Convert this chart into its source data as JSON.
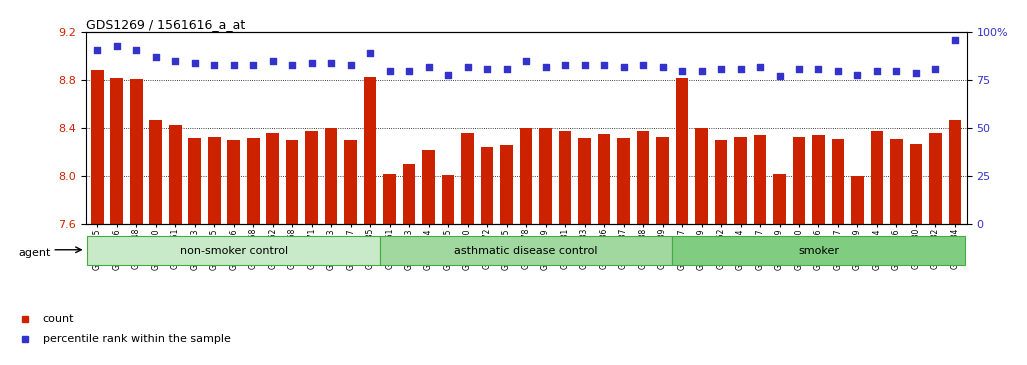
{
  "title": "GDS1269 / 1561616_a_at",
  "categories": [
    "GSM38345",
    "GSM38346",
    "GSM38348",
    "GSM38350",
    "GSM38351",
    "GSM38353",
    "GSM38355",
    "GSM38356",
    "GSM38358",
    "GSM38362",
    "GSM38368",
    "GSM38371",
    "GSM38373",
    "GSM38377",
    "GSM38385",
    "GSM38361",
    "GSM38363",
    "GSM38364",
    "GSM38365",
    "GSM38370",
    "GSM38372",
    "GSM38375",
    "GSM38378",
    "GSM38379",
    "GSM38381",
    "GSM38383",
    "GSM38386",
    "GSM38387",
    "GSM38388",
    "GSM38389",
    "GSM38347",
    "GSM38349",
    "GSM38352",
    "GSM38354",
    "GSM38357",
    "GSM38359",
    "GSM38360",
    "GSM38366",
    "GSM38367",
    "GSM38369",
    "GSM38374",
    "GSM38376",
    "GSM38380",
    "GSM38382",
    "GSM38384"
  ],
  "bar_values": [
    8.89,
    8.82,
    8.81,
    8.47,
    8.43,
    8.32,
    8.33,
    8.3,
    8.32,
    8.36,
    8.3,
    8.38,
    8.4,
    8.3,
    8.83,
    8.02,
    8.1,
    8.22,
    8.01,
    8.36,
    8.24,
    8.26,
    8.4,
    8.4,
    8.38,
    8.32,
    8.35,
    8.32,
    8.38,
    8.33,
    8.82,
    8.4,
    8.3,
    8.33,
    8.34,
    8.02,
    8.33,
    8.34,
    8.31,
    8.0,
    8.38,
    8.31,
    8.27,
    8.36,
    8.47
  ],
  "percentile_values": [
    91,
    93,
    91,
    87,
    85,
    84,
    83,
    83,
    83,
    85,
    83,
    84,
    84,
    83,
    89,
    80,
    80,
    82,
    78,
    82,
    81,
    81,
    85,
    82,
    83,
    83,
    83,
    82,
    83,
    82,
    80,
    80,
    81,
    81,
    82,
    77,
    81,
    81,
    80,
    78,
    80,
    80,
    79,
    81,
    96
  ],
  "groups": [
    {
      "label": "non-smoker control",
      "start": 0,
      "end": 15
    },
    {
      "label": "asthmatic disease control",
      "start": 15,
      "end": 30
    },
    {
      "label": "smoker",
      "start": 30,
      "end": 45
    }
  ],
  "group_colors": [
    "#c8eac8",
    "#a0d8a0",
    "#80cc80"
  ],
  "bar_color": "#cc2200",
  "dot_color": "#3333cc",
  "ylim_left": [
    7.6,
    9.2
  ],
  "ylim_right": [
    0,
    100
  ],
  "yticks_left": [
    7.6,
    8.0,
    8.4,
    8.8,
    9.2
  ],
  "yticks_right": [
    0,
    25,
    50,
    75,
    100
  ],
  "ytick_labels_right": [
    "0",
    "25",
    "50",
    "75",
    "100%"
  ],
  "grid_values": [
    8.0,
    8.4,
    8.8
  ],
  "legend_items": [
    {
      "label": "count",
      "color": "#cc2200"
    },
    {
      "label": "percentile rank within the sample",
      "color": "#3333cc"
    }
  ],
  "agent_label": "agent"
}
